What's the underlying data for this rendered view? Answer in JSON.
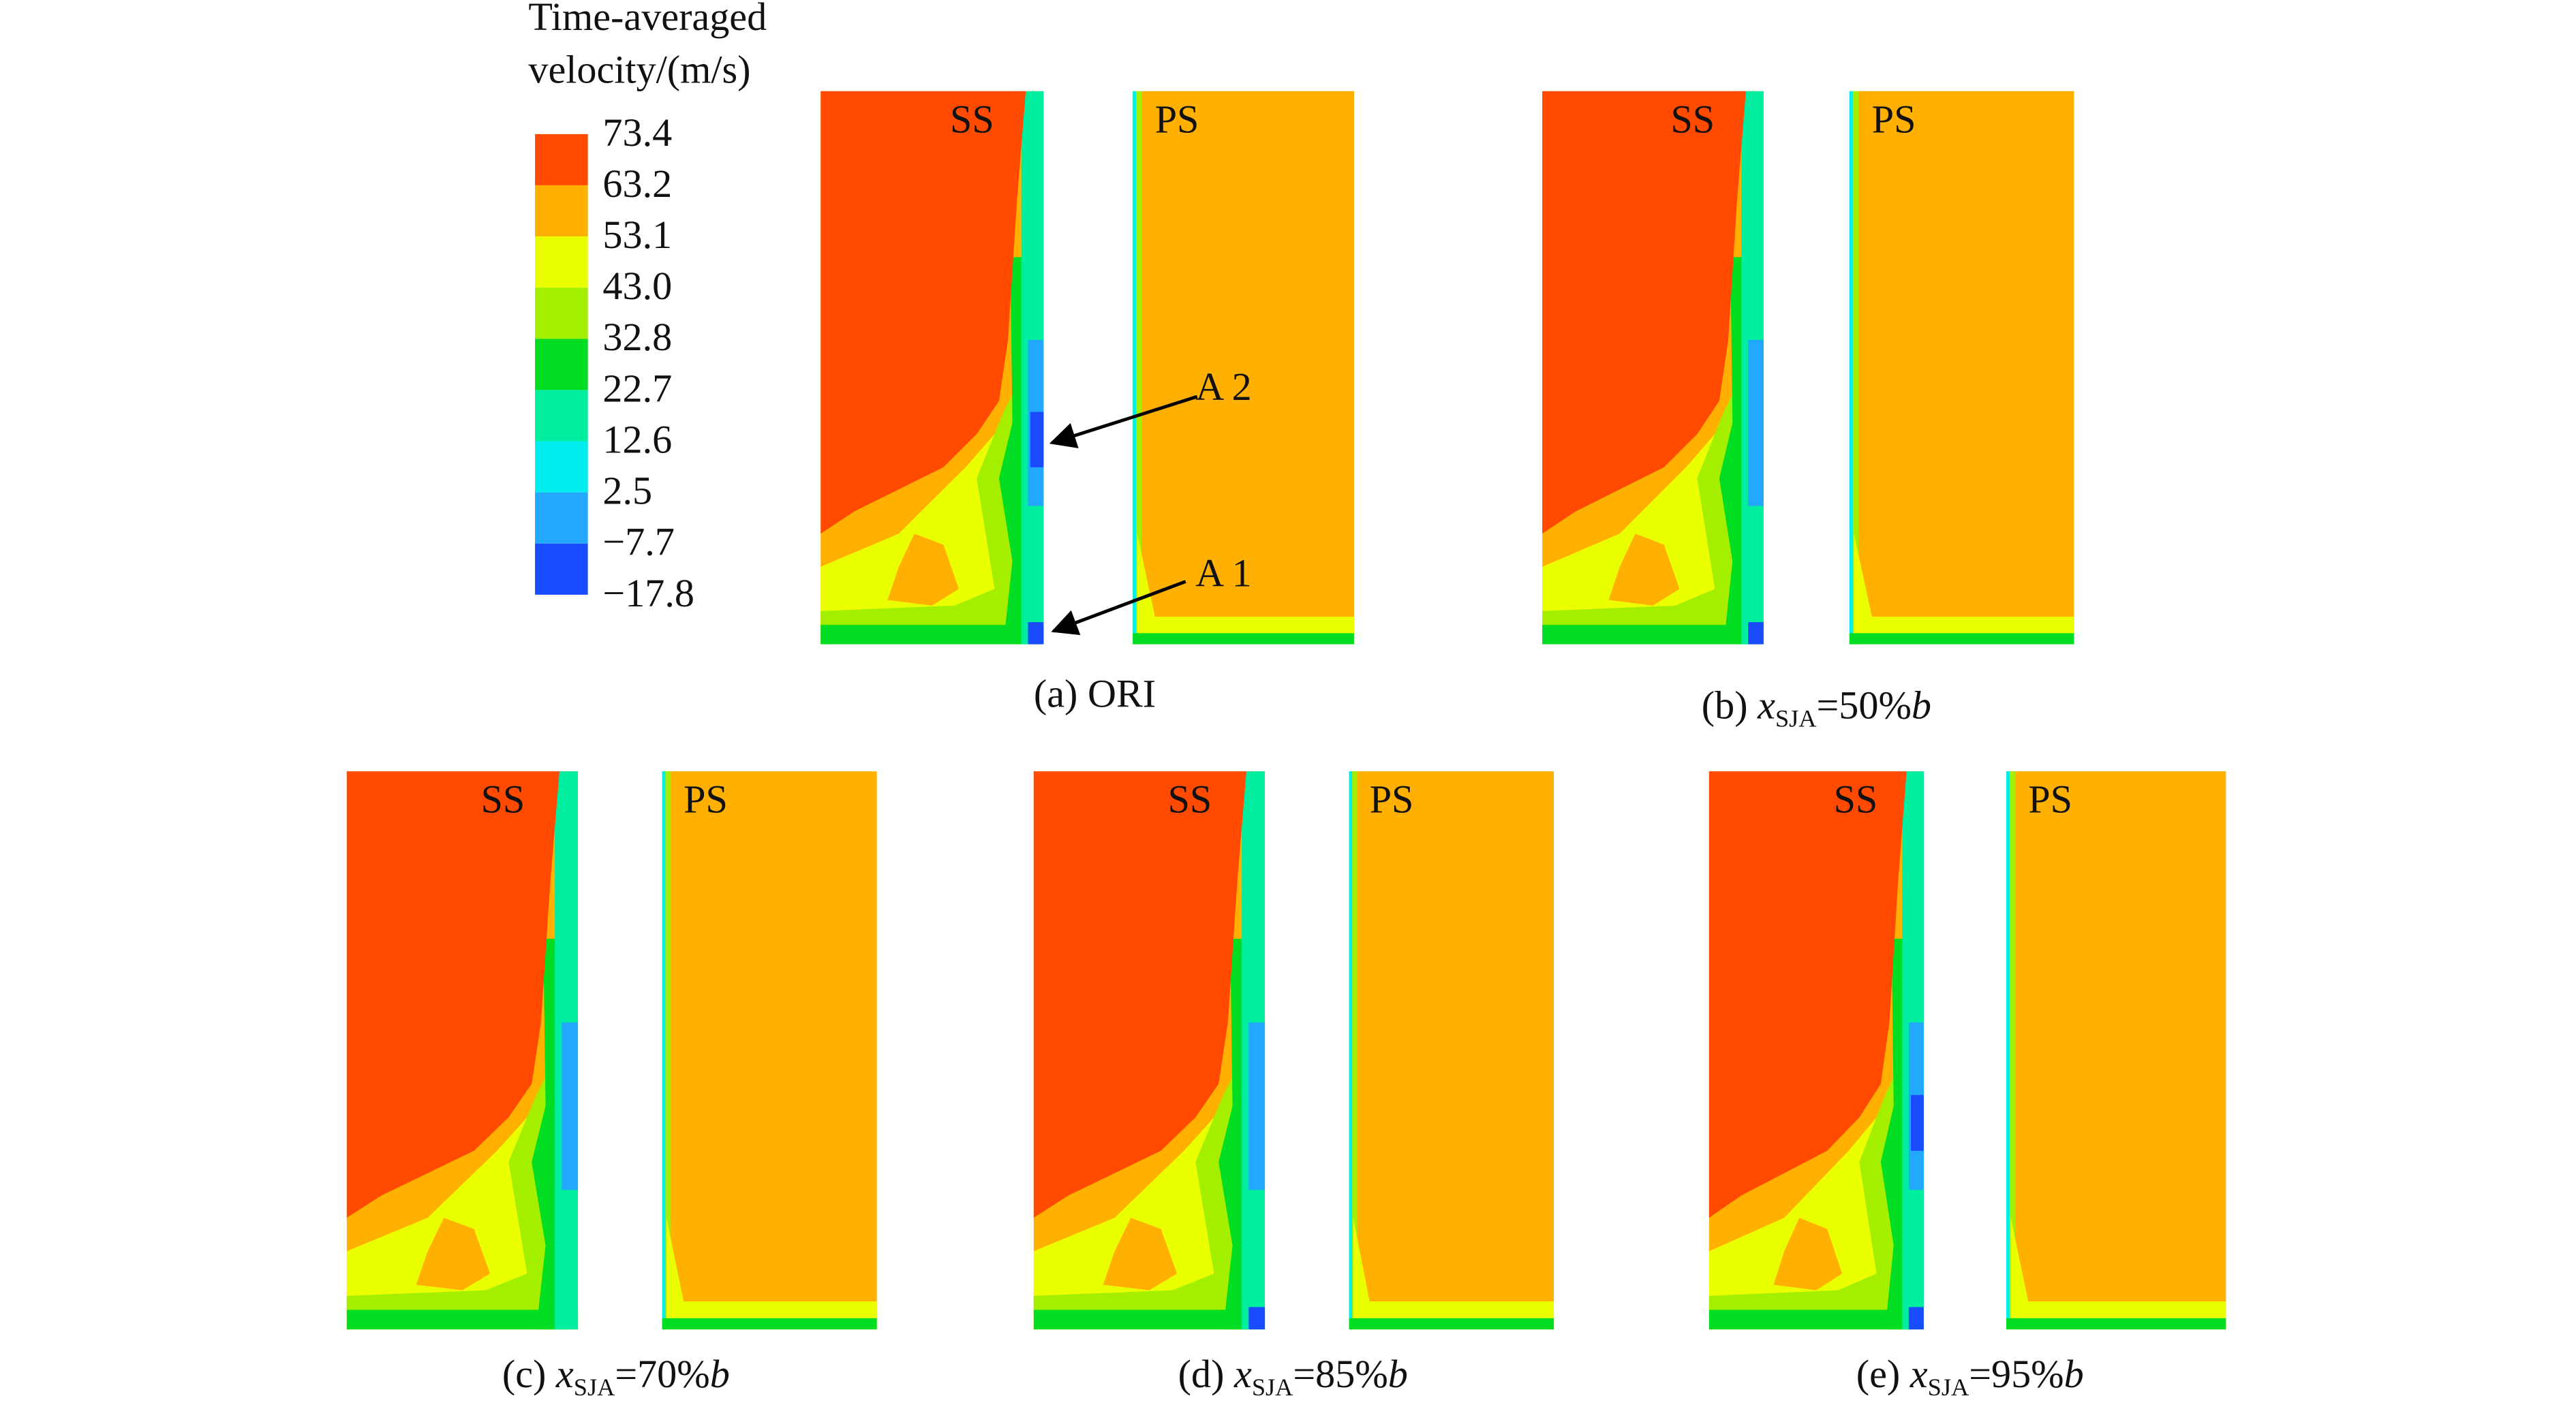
{
  "legend": {
    "title": [
      "Time-averaged",
      "velocity/(m/s)"
    ],
    "labels": [
      "73.4",
      "63.2",
      "53.1",
      "43.0",
      "32.8",
      "22.7",
      "12.6",
      "2.5",
      "−7.7",
      "−17.8"
    ]
  },
  "panels": [
    {
      "caption": {
        "prefix": "(a) ORI"
      },
      "ss": "SS",
      "ps": "PS"
    },
    {
      "caption": {
        "prefix": "(b) ",
        "var": "x",
        "sub": "SJA",
        "rest": "=50%",
        "unit": "b"
      },
      "ss": "SS",
      "ps": "PS"
    },
    {
      "caption": {
        "prefix": "(c) ",
        "var": "x",
        "sub": "SJA",
        "rest": "=70%",
        "unit": "b"
      },
      "ss": "SS",
      "ps": "PS"
    },
    {
      "caption": {
        "prefix": "(d) ",
        "var": "x",
        "sub": "SJA",
        "rest": "=85%",
        "unit": "b"
      },
      "ss": "SS",
      "ps": "PS"
    },
    {
      "caption": {
        "prefix": "(e) ",
        "var": "x",
        "sub": "SJA",
        "rest": "=95%",
        "unit": "b"
      },
      "ss": "SS",
      "ps": "PS"
    }
  ],
  "annotations": [
    "A 2",
    "A 1"
  ]
}
